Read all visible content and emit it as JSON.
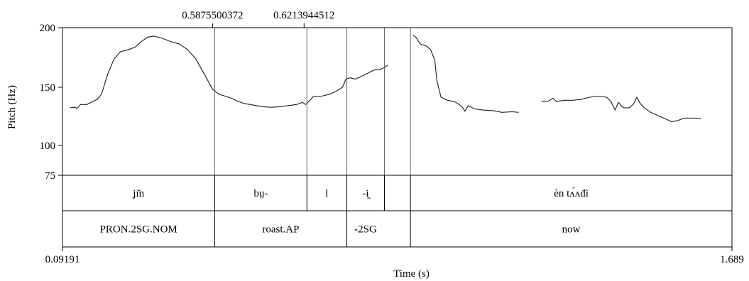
{
  "chart_data": {
    "type": "line",
    "title": "",
    "ylabel": "Pitch (Hz)",
    "xlabel": "Time (s)",
    "xlim": [
      0.09191,
      1.689
    ],
    "ylim": [
      75,
      200
    ],
    "y_ticks": [
      75,
      100,
      150,
      200
    ],
    "x_tick_labels": {
      "start": "0.09191",
      "end": "1.689"
    },
    "top_labels": [
      "0.5875500372",
      "0.6213944512"
    ],
    "grid": false,
    "series": [
      {
        "name": "",
        "points": [
          [
            0.11,
            130
          ],
          [
            0.12,
            130.5
          ],
          [
            0.127,
            129.5
          ],
          [
            0.135,
            133
          ],
          [
            0.15,
            133
          ],
          [
            0.16,
            135
          ],
          [
            0.175,
            138
          ],
          [
            0.185,
            143
          ],
          [
            0.2,
            160
          ],
          [
            0.215,
            172
          ],
          [
            0.23,
            178
          ],
          [
            0.25,
            180
          ],
          [
            0.265,
            182
          ],
          [
            0.28,
            187
          ],
          [
            0.295,
            191
          ],
          [
            0.31,
            192
          ],
          [
            0.33,
            190
          ],
          [
            0.35,
            187
          ],
          [
            0.37,
            185
          ],
          [
            0.39,
            180
          ],
          [
            0.41,
            172
          ],
          [
            0.43,
            160
          ],
          [
            0.45,
            148
          ],
          [
            0.465,
            143
          ],
          [
            0.48,
            141
          ],
          [
            0.495,
            139
          ],
          [
            0.51,
            136
          ],
          [
            0.525,
            134
          ],
          [
            0.54,
            133
          ],
          [
            0.555,
            132
          ],
          [
            0.57,
            131
          ],
          [
            0.59,
            130.5
          ],
          [
            0.61,
            131
          ],
          [
            0.63,
            132
          ],
          [
            0.65,
            133
          ],
          [
            0.665,
            135
          ],
          [
            0.672,
            133
          ],
          [
            0.68,
            136
          ],
          [
            0.69,
            140.5
          ],
          [
            0.71,
            141
          ],
          [
            0.73,
            143
          ],
          [
            0.745,
            146
          ],
          [
            0.76,
            150
          ],
          [
            0.768,
            156
          ],
          [
            0.778,
            157
          ],
          [
            0.79,
            156
          ],
          [
            0.805,
            158
          ],
          [
            0.82,
            160.5
          ],
          [
            0.835,
            163
          ],
          [
            0.85,
            163.5
          ],
          [
            0.86,
            165
          ],
          [
            0.868,
            167
          ]
        ]
      },
      {
        "name": "",
        "points": [
          [
            0.928,
            193
          ],
          [
            0.935,
            191
          ],
          [
            0.945,
            185
          ],
          [
            0.96,
            183
          ],
          [
            0.97,
            180
          ],
          [
            0.98,
            171
          ],
          [
            0.985,
            155
          ],
          [
            0.995,
            140
          ],
          [
            1.01,
            137
          ],
          [
            1.025,
            136
          ],
          [
            1.035,
            134
          ],
          [
            1.045,
            131
          ],
          [
            1.052,
            127
          ],
          [
            1.06,
            132
          ],
          [
            1.075,
            129
          ],
          [
            1.095,
            128
          ],
          [
            1.12,
            127.5
          ],
          [
            1.14,
            126
          ],
          [
            1.165,
            126.5
          ],
          [
            1.18,
            126
          ]
        ]
      },
      {
        "name": "",
        "points": [
          [
            1.235,
            136
          ],
          [
            1.25,
            136
          ],
          [
            1.262,
            139
          ],
          [
            1.27,
            136
          ],
          [
            1.29,
            137
          ],
          [
            1.31,
            137
          ],
          [
            1.33,
            138
          ],
          [
            1.35,
            140
          ],
          [
            1.37,
            141
          ],
          [
            1.39,
            140
          ],
          [
            1.4,
            136
          ],
          [
            1.41,
            128
          ],
          [
            1.418,
            135
          ],
          [
            1.43,
            130
          ],
          [
            1.445,
            130
          ],
          [
            1.455,
            134
          ],
          [
            1.462,
            140
          ],
          [
            1.47,
            134
          ],
          [
            1.48,
            130
          ],
          [
            1.495,
            126
          ],
          [
            1.52,
            122
          ],
          [
            1.545,
            118
          ],
          [
            1.56,
            119
          ],
          [
            1.575,
            121
          ],
          [
            1.6,
            121
          ],
          [
            1.615,
            120.5
          ]
        ]
      }
    ],
    "boundaries": {
      "pitch": [
        0.455,
        0.675,
        0.77,
        0.86,
        0.922
      ],
      "tier1": [
        0.455,
        0.675,
        0.77,
        0.86,
        0.922
      ],
      "tier2": [
        0.455,
        0.77,
        0.922
      ]
    },
    "tier1_labels": [
      {
        "text": "ʝɪ̆n",
        "start": 0.09191,
        "end": 0.455
      },
      {
        "text": "bṳ-",
        "start": 0.455,
        "end": 0.675
      },
      {
        "text": "l",
        "start": 0.675,
        "end": 0.77
      },
      {
        "text": "-ɨ̰",
        "start": 0.77,
        "end": 0.86
      },
      {
        "text": "èn tʌ́ʌđì",
        "start": 0.922,
        "end": 1.689
      }
    ],
    "tier2_labels": [
      {
        "text": "PRON.2SG.NOM",
        "start": 0.09191,
        "end": 0.455
      },
      {
        "text": "roast.AP",
        "start": 0.455,
        "end": 0.77
      },
      {
        "text": "-2SG",
        "start": 0.77,
        "end": 0.86
      },
      {
        "text": "now",
        "start": 0.922,
        "end": 1.689
      }
    ]
  }
}
